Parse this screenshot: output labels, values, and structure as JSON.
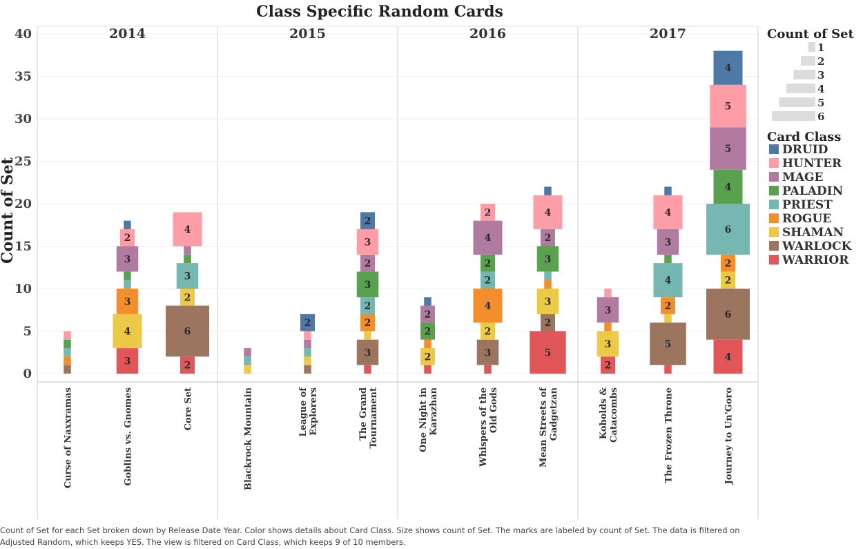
{
  "chart_data": {
    "type": "bar",
    "title": "Class Specific Random Cards",
    "ylabel": "Count of Set",
    "xlabel": "",
    "ylim": [
      0,
      40
    ],
    "yticks": [
      0,
      5,
      10,
      15,
      20,
      25,
      30,
      35,
      40
    ],
    "grid": true,
    "stack_order": [
      "WARRIOR",
      "WARLOCK",
      "SHAMAN",
      "ROGUE",
      "PRIEST",
      "PALADIN",
      "MAGE",
      "HUNTER",
      "DRUID"
    ],
    "classes": [
      {
        "name": "DRUID",
        "color": "#4e79a7"
      },
      {
        "name": "HUNTER",
        "color": "#ff9da7"
      },
      {
        "name": "MAGE",
        "color": "#b07aa1"
      },
      {
        "name": "PALADIN",
        "color": "#59a14f"
      },
      {
        "name": "PRIEST",
        "color": "#76b7b2"
      },
      {
        "name": "ROGUE",
        "color": "#f28e2b"
      },
      {
        "name": "SHAMAN",
        "color": "#edc948"
      },
      {
        "name": "WARLOCK",
        "color": "#9c755f"
      },
      {
        "name": "WARRIOR",
        "color": "#e15759"
      }
    ],
    "years": [
      {
        "year": "2014",
        "sets": [
          {
            "name": "Curse of Naxxramas",
            "counts": {
              "WARLOCK": 1,
              "ROGUE": 1,
              "PRIEST": 1,
              "PALADIN": 1,
              "HUNTER": 1
            }
          },
          {
            "name": "Goblins vs. Gnomes",
            "counts": {
              "WARRIOR": 3,
              "SHAMAN": 4,
              "ROGUE": 3,
              "PRIEST": 1,
              "PALADIN": 1,
              "MAGE": 3,
              "HUNTER": 2,
              "DRUID": 1
            }
          },
          {
            "name": "Core Set",
            "counts": {
              "WARRIOR": 2,
              "WARLOCK": 6,
              "SHAMAN": 2,
              "PRIEST": 3,
              "PALADIN": 1,
              "MAGE": 1,
              "HUNTER": 4
            }
          }
        ]
      },
      {
        "year": "2015",
        "sets": [
          {
            "name": "Blackrock Mountain",
            "counts": {
              "SHAMAN": 1,
              "PRIEST": 1,
              "MAGE": 1
            }
          },
          {
            "name": "League of Explorers",
            "counts": {
              "WARLOCK": 1,
              "SHAMAN": 1,
              "PRIEST": 1,
              "MAGE": 1,
              "HUNTER": 1,
              "DRUID": 2
            }
          },
          {
            "name": "The Grand Tournament",
            "counts": {
              "WARRIOR": 1,
              "WARLOCK": 3,
              "SHAMAN": 1,
              "ROGUE": 2,
              "PRIEST": 2,
              "PALADIN": 3,
              "MAGE": 2,
              "HUNTER": 3,
              "DRUID": 2
            }
          }
        ]
      },
      {
        "year": "2016",
        "sets": [
          {
            "name": "One Night in Karazhan",
            "counts": {
              "WARRIOR": 1,
              "SHAMAN": 2,
              "ROGUE": 1,
              "PALADIN": 2,
              "MAGE": 2,
              "DRUID": 1
            }
          },
          {
            "name": "Whispers of the Old Gods",
            "counts": {
              "WARRIOR": 1,
              "WARLOCK": 3,
              "SHAMAN": 2,
              "ROGUE": 4,
              "PRIEST": 2,
              "PALADIN": 2,
              "MAGE": 4,
              "HUNTER": 2
            }
          },
          {
            "name": "Mean Streets of Gadgetzan",
            "counts": {
              "WARRIOR": 5,
              "WARLOCK": 2,
              "SHAMAN": 3,
              "ROGUE": 1,
              "PRIEST": 1,
              "PALADIN": 3,
              "MAGE": 2,
              "HUNTER": 4,
              "DRUID": 1
            }
          }
        ]
      },
      {
        "year": "2017",
        "sets": [
          {
            "name": "Kobolds & Catacombs",
            "counts": {
              "WARRIOR": 2,
              "SHAMAN": 3,
              "ROGUE": 1,
              "MAGE": 3,
              "HUNTER": 1
            }
          },
          {
            "name": "The Frozen Throne",
            "counts": {
              "WARRIOR": 1,
              "WARLOCK": 5,
              "SHAMAN": 1,
              "ROGUE": 2,
              "PRIEST": 4,
              "PALADIN": 1,
              "MAGE": 3,
              "HUNTER": 4,
              "DRUID": 1
            }
          },
          {
            "name": "Journey to Un'Goro",
            "counts": {
              "WARRIOR": 4,
              "WARLOCK": 6,
              "SHAMAN": 2,
              "ROGUE": 2,
              "PRIEST": 6,
              "PALADIN": 4,
              "MAGE": 5,
              "HUNTER": 5,
              "DRUID": 4
            }
          }
        ]
      }
    ],
    "legend_size": {
      "title": "Count of Set",
      "items": [
        "1",
        "2",
        "3",
        "4",
        "5",
        "6"
      ]
    },
    "legend_color": {
      "title": "Card Class"
    },
    "legend_position": "right"
  },
  "caption": "Count of Set for each Set broken down by Release Date Year.  Color shows details about Card Class.  Size shows count of Set.  The marks are labeled by count of Set. The data is filtered on Adjusted Random, which keeps YES. The view is filtered on Card Class, which keeps 9 of 10 members."
}
